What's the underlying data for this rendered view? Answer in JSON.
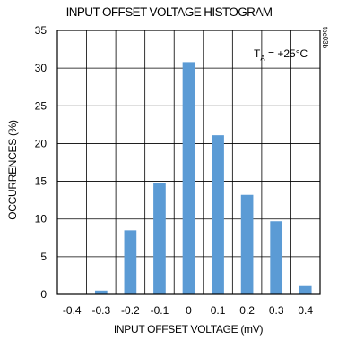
{
  "chart_data": {
    "type": "bar",
    "title": "INPUT OFFSET VOLTAGE HISTOGRAM",
    "xlabel": "INPUT OFFSET VOLTAGE (mV)",
    "ylabel": "OCCURRENCES (%)",
    "figure_code": "toc03b",
    "annotation": {
      "symbol": "T",
      "subscript": "A",
      "text": " = +25°C"
    },
    "categories": [
      "-0.4",
      "-0.3",
      "-0.2",
      "-0.1",
      "0",
      "0.1",
      "0.2",
      "0.3",
      "0.4"
    ],
    "values": [
      0,
      0.5,
      8.5,
      14.8,
      30.8,
      21.1,
      13.2,
      9.7,
      1.1
    ],
    "ylim": [
      0,
      35
    ],
    "yticks": [
      0,
      5,
      10,
      15,
      20,
      25,
      30,
      35
    ],
    "grid": true,
    "bar_color": "#5b9bd5"
  }
}
